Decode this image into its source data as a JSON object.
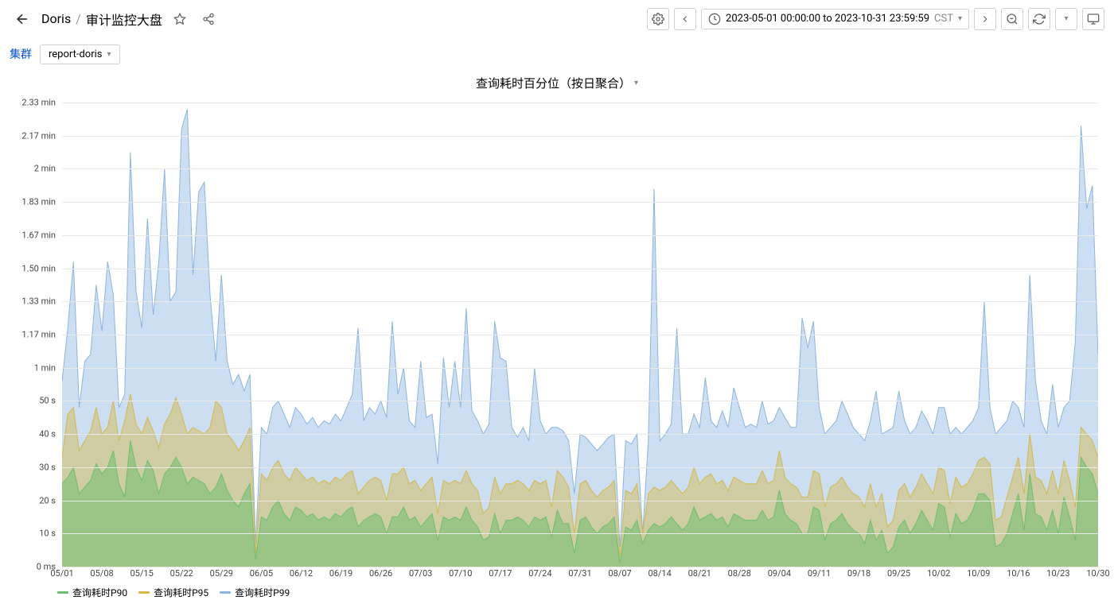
{
  "header": {
    "breadcrumb_root": "Doris",
    "breadcrumb_sep": "/",
    "breadcrumb_page": "审计监控大盘",
    "time_range": "2023-05-01 00:00:00 to 2023-10-31 23:59:59",
    "timezone": "CST"
  },
  "sub": {
    "label": "集群",
    "select_value": "report-doris"
  },
  "chart": {
    "title": "查询耗时百分位（按日聚合）",
    "type": "area",
    "y_ticks": [
      "2.33 min",
      "2.17 min",
      "2 min",
      "1.83 min",
      "1.67 min",
      "1.50 min",
      "1.33 min",
      "1.17 min",
      "1 min",
      "50 s",
      "40 s",
      "30 s",
      "20 s",
      "10 s",
      "0 ms"
    ],
    "y_tick_values": [
      140,
      130,
      120,
      110,
      100,
      90,
      80,
      70,
      60,
      50,
      40,
      30,
      20,
      10,
      0
    ],
    "ylim": [
      0,
      140
    ],
    "x_ticks": [
      "05/01",
      "05/08",
      "05/15",
      "05/22",
      "05/29",
      "06/05",
      "06/12",
      "06/19",
      "06/26",
      "07/03",
      "07/10",
      "07/17",
      "07/24",
      "07/31",
      "08/07",
      "08/14",
      "08/21",
      "08/28",
      "09/04",
      "09/11",
      "09/18",
      "09/25",
      "10/02",
      "10/09",
      "10/16",
      "10/23",
      "10/30"
    ],
    "background_color": "#ffffff",
    "grid_color": "#e8e8e8",
    "series": [
      {
        "name": "查询耗时P90",
        "color": "#6dbf6d",
        "fill_opacity": 0.55,
        "stroke_width": 1,
        "values": [
          25,
          27,
          30,
          22,
          24,
          26,
          31,
          28,
          30,
          35,
          25,
          21,
          38,
          30,
          26,
          32,
          29,
          22,
          28,
          30,
          33,
          30,
          25,
          27,
          26,
          25,
          22,
          24,
          28,
          23,
          20,
          18,
          22,
          25,
          2,
          15,
          14,
          18,
          20,
          16,
          14,
          18,
          17,
          15,
          16,
          14,
          15,
          14,
          16,
          15,
          17,
          18,
          12,
          14,
          15,
          16,
          15,
          10,
          15,
          15,
          18,
          14,
          15,
          12,
          14,
          16,
          8,
          15,
          14,
          15,
          14,
          18,
          14,
          12,
          8,
          9,
          16,
          10,
          14,
          14,
          15,
          14,
          12,
          15,
          14,
          15,
          9,
          17,
          13,
          13,
          4,
          14,
          15,
          12,
          10,
          12,
          13,
          15,
          1,
          12,
          11,
          14,
          7,
          11,
          13,
          12,
          13,
          15,
          13,
          11,
          13,
          18,
          14,
          15,
          16,
          14,
          15,
          12,
          16,
          15,
          14,
          14,
          14,
          17,
          14,
          15,
          23,
          16,
          14,
          13,
          10,
          10,
          18,
          17,
          8,
          13,
          14,
          16,
          13,
          11,
          10,
          7,
          14,
          8,
          11,
          4,
          6,
          12,
          14,
          10,
          13,
          17,
          14,
          11,
          19,
          18,
          9,
          16,
          13,
          14,
          17,
          22,
          22,
          20,
          6,
          7,
          10,
          16,
          22,
          11,
          28,
          16,
          15,
          11,
          17,
          10,
          21,
          15,
          8,
          33,
          30,
          28,
          22
        ]
      },
      {
        "name": "查询耗时P95",
        "color": "#d4b94a",
        "fill_opacity": 0.45,
        "stroke_width": 1,
        "values": [
          33,
          46,
          48,
          35,
          38,
          41,
          48,
          40,
          42,
          50,
          38,
          44,
          52,
          43,
          40,
          45,
          41,
          36,
          43,
          46,
          51,
          46,
          40,
          42,
          41,
          40,
          42,
          50,
          48,
          40,
          38,
          35,
          38,
          42,
          4,
          28,
          26,
          30,
          32,
          28,
          26,
          30,
          28,
          26,
          27,
          25,
          26,
          25,
          27,
          26,
          28,
          29,
          22,
          24,
          26,
          27,
          26,
          20,
          28,
          28,
          30,
          25,
          26,
          23,
          25,
          27,
          16,
          26,
          25,
          26,
          25,
          29,
          25,
          23,
          16,
          18,
          27,
          22,
          25,
          25,
          26,
          25,
          23,
          26,
          25,
          26,
          18,
          29,
          27,
          24,
          10,
          25,
          26,
          23,
          21,
          23,
          24,
          26,
          3,
          23,
          22,
          25,
          10,
          22,
          24,
          23,
          24,
          26,
          24,
          22,
          24,
          30,
          25,
          27,
          28,
          25,
          26,
          23,
          27,
          26,
          25,
          25,
          25,
          29,
          25,
          26,
          35,
          27,
          25,
          24,
          21,
          21,
          29,
          28,
          18,
          24,
          25,
          27,
          24,
          22,
          21,
          18,
          25,
          18,
          22,
          12,
          14,
          23,
          25,
          21,
          24,
          28,
          25,
          22,
          30,
          29,
          19,
          27,
          24,
          25,
          28,
          32,
          33,
          31,
          14,
          15,
          21,
          27,
          33,
          22,
          40,
          27,
          26,
          22,
          29,
          22,
          32,
          26,
          18,
          42,
          40,
          38,
          33
        ]
      },
      {
        "name": "查询耗时P99",
        "color": "#8db5e0",
        "fill_opacity": 0.45,
        "stroke_width": 1,
        "values": [
          56,
          72,
          92,
          48,
          62,
          64,
          85,
          71,
          92,
          82,
          48,
          52,
          125,
          83,
          72,
          105,
          76,
          92,
          120,
          80,
          83,
          132,
          138,
          88,
          113,
          116,
          82,
          62,
          88,
          62,
          55,
          58,
          53,
          58,
          7,
          42,
          40,
          48,
          50,
          46,
          42,
          48,
          46,
          43,
          45,
          42,
          44,
          43,
          46,
          44,
          48,
          52,
          72,
          44,
          48,
          46,
          50,
          45,
          74,
          52,
          60,
          44,
          42,
          62,
          45,
          46,
          31,
          63,
          48,
          62,
          48,
          78,
          47,
          44,
          40,
          43,
          74,
          63,
          62,
          42,
          39,
          42,
          38,
          60,
          44,
          40,
          42,
          42,
          41,
          38,
          22,
          40,
          39,
          37,
          35,
          37,
          39,
          40,
          6,
          38,
          37,
          40,
          10,
          38,
          114,
          38,
          40,
          43,
          72,
          40,
          40,
          46,
          42,
          57,
          44,
          42,
          47,
          42,
          54,
          48,
          42,
          43,
          42,
          50,
          43,
          44,
          48,
          45,
          42,
          42,
          75,
          66,
          74,
          48,
          40,
          42,
          44,
          50,
          46,
          42,
          40,
          38,
          44,
          53,
          40,
          41,
          42,
          53,
          44,
          40,
          42,
          47,
          44,
          40,
          48,
          48,
          40,
          42,
          40,
          42,
          44,
          48,
          80,
          48,
          40,
          42,
          44,
          50,
          48,
          42,
          88,
          56,
          44,
          40,
          55,
          42,
          48,
          50,
          68,
          133,
          108,
          115,
          64
        ]
      }
    ],
    "legend_labels": [
      "查询耗时P90",
      "查询耗时P95",
      "查询耗时P99"
    ]
  }
}
